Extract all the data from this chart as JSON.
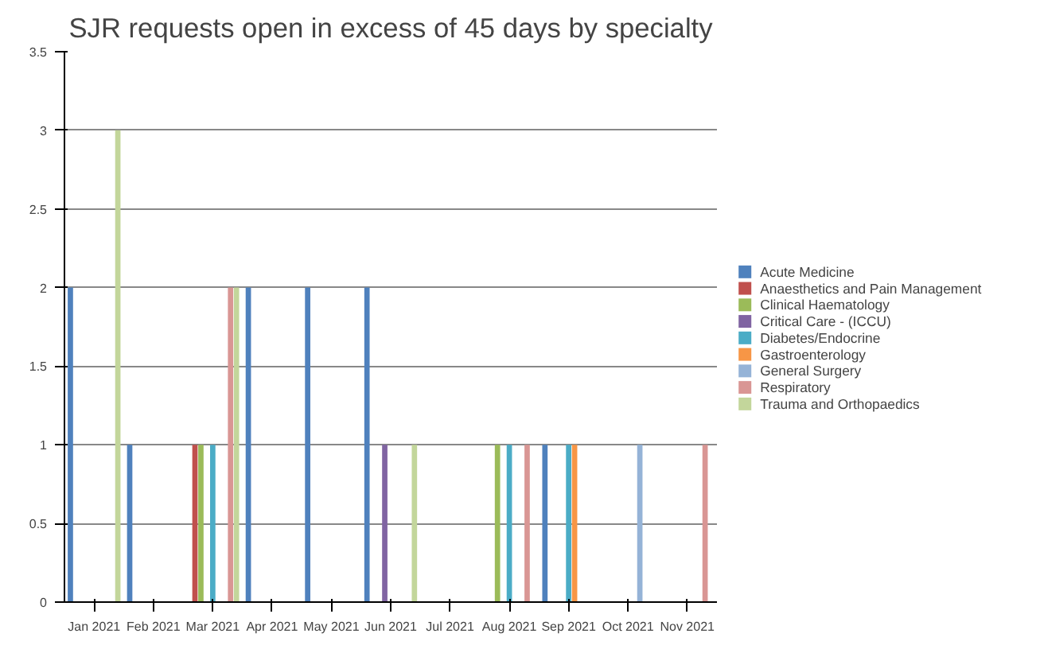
{
  "chart_data": {
    "type": "bar",
    "title": "SJR requests open in excess of 45 days by specialty",
    "categories": [
      "Jan 2021",
      "Feb 2021",
      "Mar 2021",
      "Apr 2021",
      "May 2021",
      "Jun 2021",
      "Jul 2021",
      "Aug 2021",
      "Sep 2021",
      "Oct 2021",
      "Nov 2021"
    ],
    "series": [
      {
        "name": "Acute Medicine",
        "color": "#4f81bd",
        "values": [
          2,
          1,
          null,
          2,
          2,
          2,
          null,
          null,
          1,
          null,
          null
        ]
      },
      {
        "name": "Anaesthetics and Pain Management",
        "color": "#c0504d",
        "values": [
          null,
          null,
          1,
          null,
          null,
          null,
          null,
          null,
          null,
          null,
          null
        ]
      },
      {
        "name": "Clinical Haematology",
        "color": "#9bbb59",
        "values": [
          null,
          null,
          1,
          null,
          null,
          null,
          null,
          1,
          null,
          null,
          null
        ]
      },
      {
        "name": "Critical Care - (ICCU)",
        "color": "#8064a2",
        "values": [
          null,
          null,
          null,
          null,
          null,
          1,
          null,
          null,
          null,
          null,
          null
        ]
      },
      {
        "name": "Diabetes/Endocrine",
        "color": "#4bacc6",
        "values": [
          null,
          null,
          1,
          null,
          null,
          null,
          null,
          1,
          1,
          null,
          null
        ]
      },
      {
        "name": "Gastroenterology",
        "color": "#f79646",
        "values": [
          null,
          null,
          null,
          null,
          null,
          null,
          null,
          null,
          1,
          null,
          null
        ]
      },
      {
        "name": "General Surgery",
        "color": "#95b3d7",
        "values": [
          null,
          null,
          null,
          null,
          null,
          null,
          null,
          null,
          null,
          1,
          null
        ]
      },
      {
        "name": "Respiratory",
        "color": "#d99694",
        "values": [
          null,
          null,
          2,
          null,
          null,
          null,
          null,
          1,
          null,
          null,
          1
        ]
      },
      {
        "name": "Trauma and Orthopaedics",
        "color": "#c3d69b",
        "values": [
          3,
          null,
          2,
          null,
          null,
          1,
          null,
          null,
          null,
          null,
          null
        ]
      }
    ],
    "ylim": [
      0,
      3.5
    ],
    "yticks": [
      0,
      0.5,
      1,
      1.5,
      2,
      2.5,
      3,
      3.5
    ],
    "grid": "y",
    "legend": "right"
  }
}
